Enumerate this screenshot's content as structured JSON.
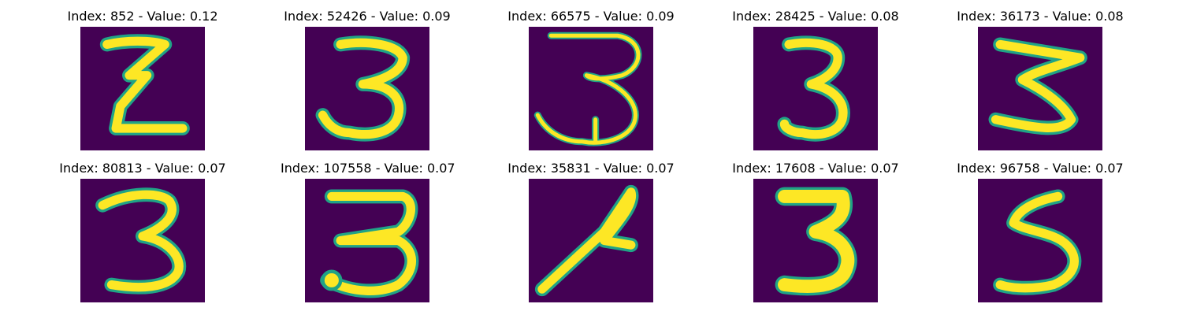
{
  "colors": {
    "background": "#440154",
    "stroke_edge": "#20a386",
    "stroke_core": "#fde725",
    "stroke_mid": "#95d840"
  },
  "panels": [
    {
      "title": "Index: 852 - Value: 0.12"
    },
    {
      "title": "Index: 52426 - Value: 0.09"
    },
    {
      "title": "Index: 66575 - Value: 0.09"
    },
    {
      "title": "Index: 28425 - Value: 0.08"
    },
    {
      "title": "Index: 36173 - Value: 0.08"
    },
    {
      "title": "Index: 80813 - Value: 0.07"
    },
    {
      "title": "Index: 107558 - Value: 0.07"
    },
    {
      "title": "Index: 35831 - Value: 0.07"
    },
    {
      "title": "Index: 17608 - Value: 0.07"
    },
    {
      "title": "Index: 96758 - Value: 0.07"
    }
  ]
}
